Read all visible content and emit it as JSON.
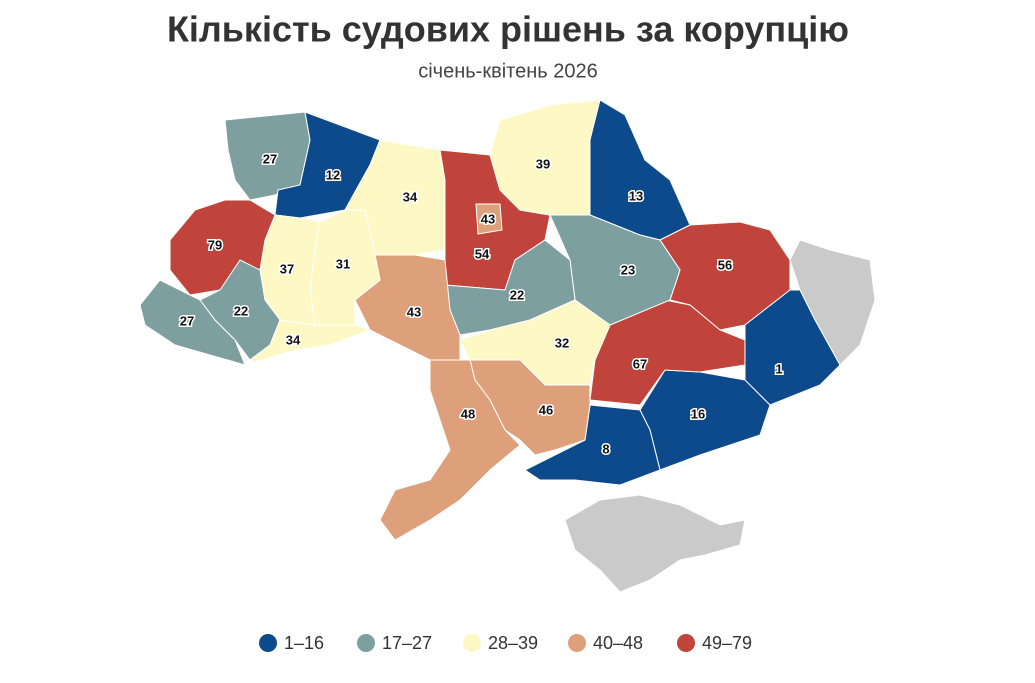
{
  "chart_data": {
    "type": "choropleth",
    "title": "Кількість судових рішень за корупцію",
    "subtitle": "січень-квітень 2026",
    "legend": [
      {
        "label": "1–16",
        "color": "#0d4a8b"
      },
      {
        "label": "17–27",
        "color": "#7e9fa0"
      },
      {
        "label": "28–39",
        "color": "#fdf8c4"
      },
      {
        "label": "40–48",
        "color": "#dea07b"
      },
      {
        "label": "49–79",
        "color": "#c0443b"
      }
    ],
    "regions": [
      {
        "value": 27,
        "color": "#7e9fa0"
      },
      {
        "value": 12,
        "color": "#0d4a8b"
      },
      {
        "value": 34,
        "color": "#fdf8c4"
      },
      {
        "value": 54,
        "color": "#c0443b"
      },
      {
        "value": 43,
        "color": "#dea07b"
      },
      {
        "value": 39,
        "color": "#fdf8c4"
      },
      {
        "value": 13,
        "color": "#0d4a8b"
      },
      {
        "value": 56,
        "color": "#c0443b"
      },
      {
        "value": 1,
        "color": "#0d4a8b"
      },
      {
        "value": 16,
        "color": "#0d4a8b"
      },
      {
        "value": 8,
        "color": "#0d4a8b"
      },
      {
        "value": 67,
        "color": "#c0443b"
      },
      {
        "value": 23,
        "color": "#7e9fa0"
      },
      {
        "value": 22,
        "color": "#7e9fa0"
      },
      {
        "value": 32,
        "color": "#fdf8c4"
      },
      {
        "value": 46,
        "color": "#dea07b"
      },
      {
        "value": 48,
        "color": "#dea07b"
      },
      {
        "value": 43,
        "color": "#dea07b"
      },
      {
        "value": 31,
        "color": "#fdf8c4"
      },
      {
        "value": 37,
        "color": "#fdf8c4"
      },
      {
        "value": 79,
        "color": "#c0443b"
      },
      {
        "value": 22,
        "color": "#7e9fa0"
      },
      {
        "value": 27,
        "color": "#7e9fa0"
      },
      {
        "value": 34,
        "color": "#fdf8c4"
      }
    ]
  }
}
